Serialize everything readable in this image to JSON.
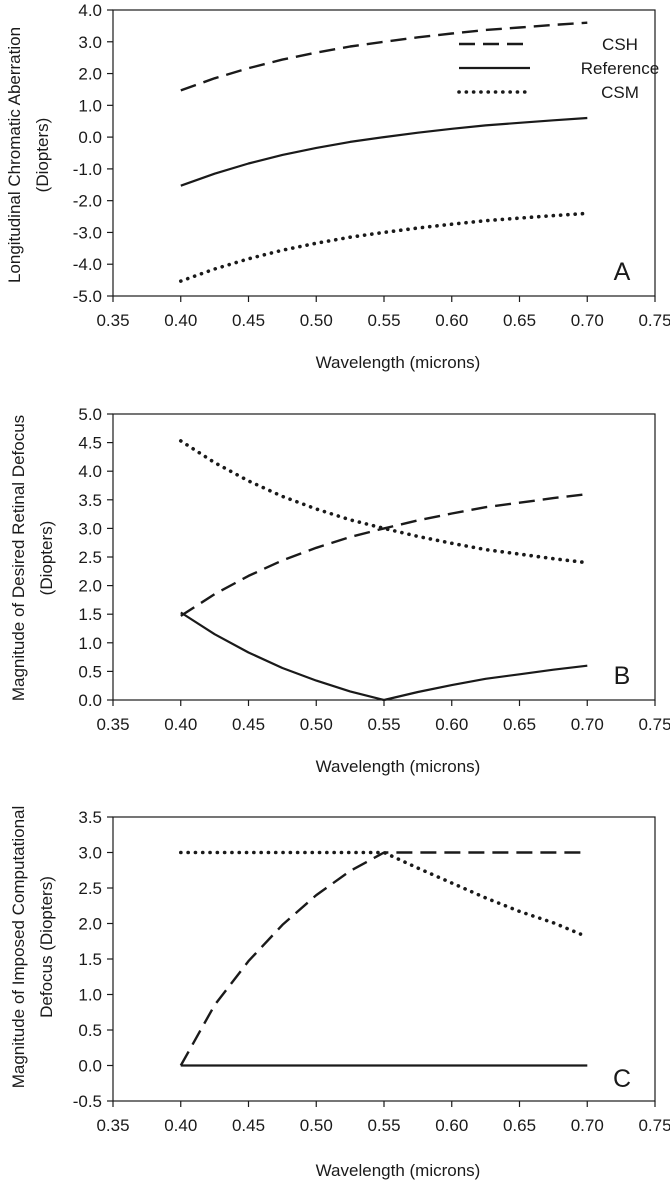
{
  "chart_data": [
    {
      "type": "line",
      "panel_label": "A",
      "xlabel": "Wavelength (microns)",
      "ylabel_lines": [
        "Longitudinal Chromatic Aberration",
        "(Diopters)"
      ],
      "xlim": [
        0.35,
        0.75
      ],
      "ylim": [
        -5.0,
        4.0
      ],
      "x_ticks": [
        "0.35",
        "0.40",
        "0.45",
        "0.50",
        "0.55",
        "0.60",
        "0.65",
        "0.70",
        "0.75"
      ],
      "y_ticks": [
        "-5.0",
        "-4.0",
        "-3.0",
        "-2.0",
        "-1.0",
        "0.0",
        "1.0",
        "2.0",
        "3.0",
        "4.0"
      ],
      "legend": {
        "position": "top-right",
        "entries": [
          "CSH",
          "Reference",
          "CSM"
        ]
      },
      "series": [
        {
          "name": "CSH",
          "style": "dashed",
          "x": [
            0.4,
            0.425,
            0.45,
            0.475,
            0.5,
            0.525,
            0.55,
            0.575,
            0.6,
            0.625,
            0.65,
            0.675,
            0.7
          ],
          "y": [
            1.47,
            1.85,
            2.17,
            2.44,
            2.66,
            2.85,
            3.0,
            3.14,
            3.26,
            3.37,
            3.45,
            3.53,
            3.6
          ]
        },
        {
          "name": "Reference",
          "style": "solid",
          "x": [
            0.4,
            0.425,
            0.45,
            0.475,
            0.5,
            0.525,
            0.55,
            0.575,
            0.6,
            0.625,
            0.65,
            0.675,
            0.7
          ],
          "y": [
            -1.53,
            -1.15,
            -0.83,
            -0.56,
            -0.34,
            -0.15,
            0.0,
            0.14,
            0.26,
            0.37,
            0.45,
            0.53,
            0.6
          ]
        },
        {
          "name": "CSM",
          "style": "dotted",
          "x": [
            0.4,
            0.425,
            0.45,
            0.475,
            0.5,
            0.525,
            0.55,
            0.575,
            0.6,
            0.625,
            0.65,
            0.675,
            0.7
          ],
          "y": [
            -4.53,
            -4.15,
            -3.83,
            -3.56,
            -3.34,
            -3.15,
            -3.0,
            -2.86,
            -2.74,
            -2.63,
            -2.55,
            -2.47,
            -2.4
          ]
        }
      ]
    },
    {
      "type": "line",
      "panel_label": "B",
      "xlabel": "Wavelength (microns)",
      "ylabel_lines": [
        "Magnitude of Desired Retinal Defocus",
        "(Diopters)"
      ],
      "xlim": [
        0.35,
        0.75
      ],
      "ylim": [
        0.0,
        5.0
      ],
      "x_ticks": [
        "0.35",
        "0.40",
        "0.45",
        "0.50",
        "0.55",
        "0.60",
        "0.65",
        "0.70",
        "0.75"
      ],
      "y_ticks": [
        "0.0",
        "0.5",
        "1.0",
        "1.5",
        "2.0",
        "2.5",
        "3.0",
        "3.5",
        "4.0",
        "4.5",
        "5.0"
      ],
      "series": [
        {
          "name": "CSH",
          "style": "dashed",
          "x": [
            0.4,
            0.425,
            0.45,
            0.475,
            0.5,
            0.525,
            0.55,
            0.575,
            0.6,
            0.625,
            0.65,
            0.675,
            0.7
          ],
          "y": [
            1.47,
            1.85,
            2.17,
            2.44,
            2.66,
            2.85,
            3.0,
            3.14,
            3.26,
            3.37,
            3.45,
            3.53,
            3.6
          ]
        },
        {
          "name": "Reference",
          "style": "solid",
          "x": [
            0.4,
            0.425,
            0.45,
            0.475,
            0.5,
            0.525,
            0.55,
            0.575,
            0.6,
            0.625,
            0.65,
            0.675,
            0.7
          ],
          "y": [
            1.53,
            1.15,
            0.83,
            0.56,
            0.34,
            0.15,
            0.0,
            0.14,
            0.26,
            0.37,
            0.45,
            0.53,
            0.6
          ]
        },
        {
          "name": "CSM",
          "style": "dotted",
          "x": [
            0.4,
            0.425,
            0.45,
            0.475,
            0.5,
            0.525,
            0.55,
            0.575,
            0.6,
            0.625,
            0.65,
            0.675,
            0.7
          ],
          "y": [
            4.53,
            4.15,
            3.83,
            3.56,
            3.34,
            3.15,
            3.0,
            2.86,
            2.74,
            2.63,
            2.55,
            2.47,
            2.4
          ]
        }
      ]
    },
    {
      "type": "line",
      "panel_label": "C",
      "xlabel": "Wavelength (microns)",
      "ylabel_lines": [
        "Magnitude of Imposed Computational",
        "Defocus (Diopters)"
      ],
      "xlim": [
        0.35,
        0.75
      ],
      "ylim": [
        -0.5,
        3.5
      ],
      "x_ticks": [
        "0.35",
        "0.40",
        "0.45",
        "0.50",
        "0.55",
        "0.60",
        "0.65",
        "0.70",
        "0.75"
      ],
      "y_ticks": [
        "-0.5",
        "0.0",
        "0.5",
        "1.0",
        "1.5",
        "2.0",
        "2.5",
        "3.0",
        "3.5"
      ],
      "series": [
        {
          "name": "CSH",
          "style": "dashed",
          "x": [
            0.4,
            0.425,
            0.45,
            0.475,
            0.5,
            0.525,
            0.55,
            0.575,
            0.6,
            0.625,
            0.65,
            0.675,
            0.7
          ],
          "y": [
            0.0,
            0.85,
            1.47,
            1.98,
            2.4,
            2.74,
            3.0,
            3.0,
            3.0,
            3.0,
            3.0,
            3.0,
            3.0
          ]
        },
        {
          "name": "Reference",
          "style": "solid",
          "x": [
            0.4,
            0.7
          ],
          "y": [
            0.0,
            0.0
          ]
        },
        {
          "name": "CSM",
          "style": "dotted",
          "x": [
            0.4,
            0.425,
            0.45,
            0.475,
            0.5,
            0.525,
            0.55,
            0.575,
            0.6,
            0.625,
            0.65,
            0.675,
            0.695
          ],
          "y": [
            3.0,
            3.0,
            3.0,
            3.0,
            3.0,
            3.0,
            3.0,
            2.78,
            2.57,
            2.36,
            2.17,
            2.01,
            1.85
          ]
        }
      ]
    }
  ]
}
